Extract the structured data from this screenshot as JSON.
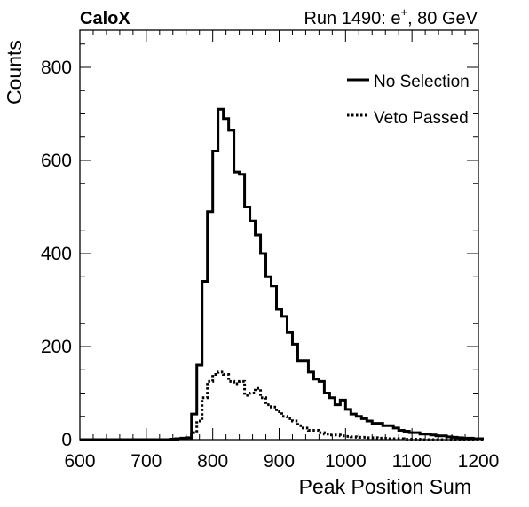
{
  "header": {
    "experiment": "CaloX",
    "run_prefix": "Run 1490: e",
    "run_superscript": "+",
    "run_suffix": ", 80 GeV"
  },
  "chart_data": {
    "type": "histogram",
    "xlabel": "Peak Position Sum",
    "ylabel": "Counts",
    "xlim": [
      600,
      1200
    ],
    "ylim": [
      0,
      880
    ],
    "xticks": [
      "600",
      "700",
      "800",
      "900",
      "1000",
      "1100",
      "1200"
    ],
    "yticks": [
      "0",
      "200",
      "400",
      "600",
      "800"
    ],
    "bin_edges_start": 600,
    "bin_width": 8,
    "grid": false,
    "legend_position": "top-right",
    "series": [
      {
        "name": "No Selection",
        "line_style": "solid",
        "color": "#000000",
        "values": [
          0,
          0,
          0,
          0,
          0,
          0,
          0,
          0,
          0,
          0,
          0,
          0,
          0,
          0,
          0,
          0,
          0,
          1,
          2,
          3,
          4,
          55,
          160,
          340,
          490,
          620,
          710,
          690,
          665,
          575,
          570,
          500,
          470,
          440,
          400,
          350,
          330,
          280,
          265,
          230,
          205,
          170,
          170,
          145,
          130,
          125,
          100,
          90,
          75,
          85,
          65,
          55,
          50,
          45,
          40,
          35,
          35,
          30,
          30,
          25,
          20,
          18,
          15,
          15,
          12,
          12,
          10,
          8,
          8,
          6,
          5,
          4,
          3,
          3,
          2,
          2
        ]
      },
      {
        "name": "Veto Passed",
        "line_style": "dotted",
        "color": "#000000",
        "values": [
          0,
          0,
          0,
          0,
          0,
          0,
          0,
          0,
          0,
          0,
          0,
          0,
          0,
          0,
          0,
          0,
          0,
          0,
          1,
          2,
          2,
          15,
          40,
          90,
          125,
          140,
          145,
          140,
          125,
          120,
          125,
          95,
          100,
          110,
          90,
          75,
          70,
          60,
          50,
          45,
          40,
          30,
          25,
          20,
          20,
          15,
          12,
          10,
          10,
          8,
          7,
          6,
          5,
          5,
          4,
          4,
          3,
          3,
          2,
          2,
          2,
          1,
          1,
          1,
          0,
          0,
          0,
          0,
          0,
          0,
          0,
          0,
          0,
          0,
          0,
          0
        ]
      }
    ]
  }
}
